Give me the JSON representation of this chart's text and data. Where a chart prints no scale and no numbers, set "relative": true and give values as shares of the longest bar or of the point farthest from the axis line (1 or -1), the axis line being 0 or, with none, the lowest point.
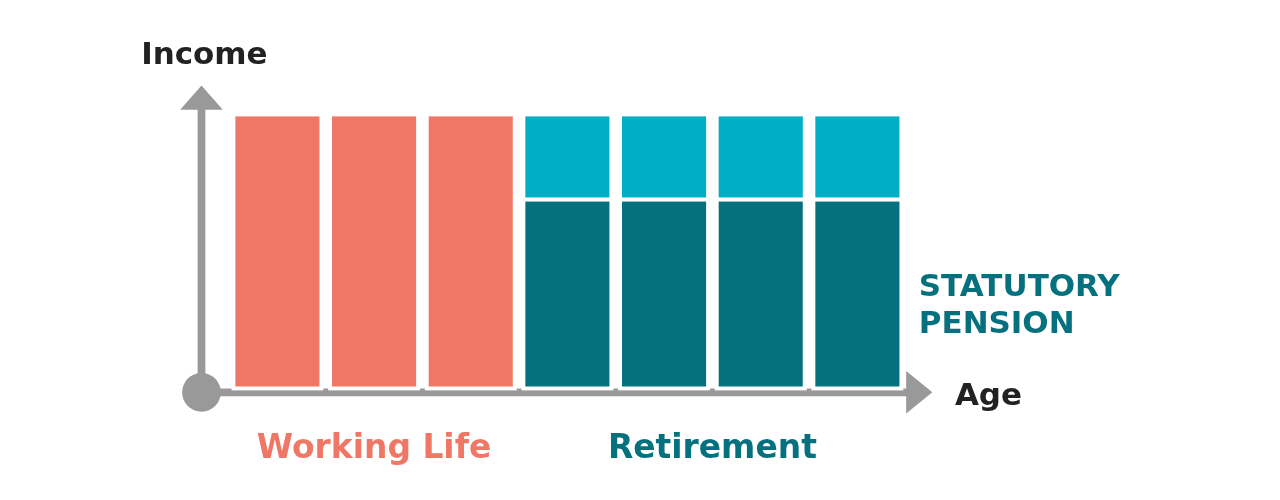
{
  "chart_data": {
    "type": "bar",
    "stacked": true,
    "relative": true,
    "xlabel": "Age",
    "ylabel": "Income",
    "categories": [
      null,
      null,
      null,
      null,
      null,
      null,
      null
    ],
    "series": [
      {
        "name": "Working Life",
        "color": "#ef7766",
        "values": [
          1,
          1,
          1,
          null,
          null,
          null,
          null
        ]
      },
      {
        "name": "STATUTORY PENSION",
        "color": "#06717e",
        "values": [
          null,
          null,
          null,
          0.69,
          0.69,
          0.69,
          0.69
        ]
      },
      {
        "color": "#00aec6",
        "values": [
          null,
          null,
          null,
          0.31,
          0.31,
          0.31,
          0.31
        ]
      }
    ],
    "annotations": [
      "Retirement"
    ],
    "legend": false
  }
}
